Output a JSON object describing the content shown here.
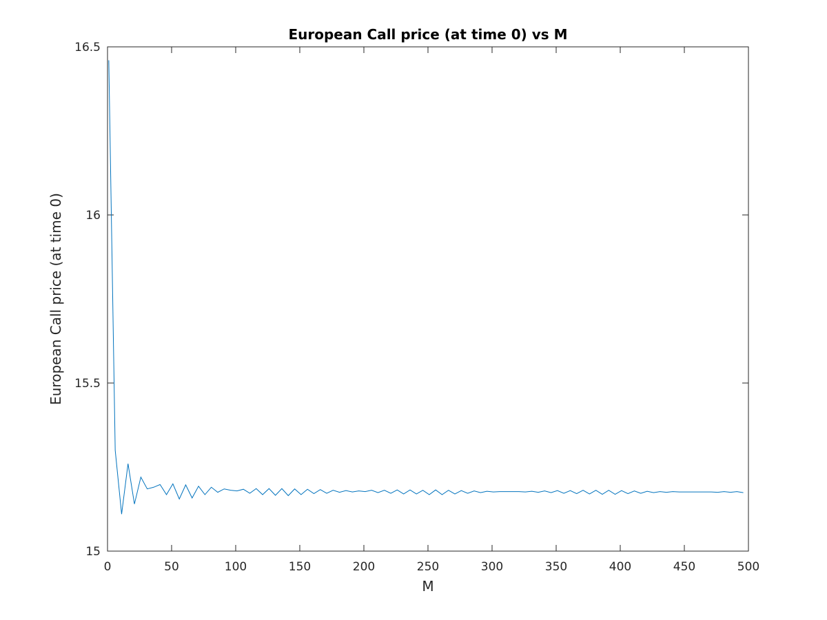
{
  "chart_data": {
    "type": "line",
    "title": "European Call price (at time 0) vs M",
    "xlabel": "M",
    "ylabel": "European Call price (at time 0)",
    "xlim": [
      0,
      500
    ],
    "ylim": [
      15,
      16.5
    ],
    "xticks": [
      0,
      50,
      100,
      150,
      200,
      250,
      300,
      350,
      400,
      450,
      500
    ],
    "yticks": [
      15,
      15.5,
      16,
      16.5
    ],
    "xtick_labels": [
      "0",
      "50",
      "100",
      "150",
      "200",
      "250",
      "300",
      "350",
      "400",
      "450",
      "500"
    ],
    "ytick_labels": [
      "15",
      "15.5",
      "16",
      "16.5"
    ],
    "grid": false,
    "line_color": "#0072BD",
    "series": [
      {
        "x": [
          1,
          6,
          11,
          16,
          21,
          26,
          31,
          36,
          41,
          46,
          51,
          56,
          61,
          66,
          71,
          76,
          81,
          86,
          91,
          96,
          101,
          106,
          111,
          116,
          121,
          126,
          131,
          136,
          141,
          146,
          151,
          156,
          161,
          166,
          171,
          176,
          181,
          186,
          191,
          196,
          201,
          206,
          211,
          216,
          221,
          226,
          231,
          236,
          241,
          246,
          251,
          256,
          261,
          266,
          271,
          276,
          281,
          286,
          291,
          296,
          301,
          306,
          311,
          316,
          321,
          326,
          331,
          336,
          341,
          346,
          351,
          356,
          361,
          366,
          371,
          376,
          381,
          386,
          391,
          396,
          401,
          406,
          411,
          416,
          421,
          426,
          431,
          436,
          441,
          446,
          451,
          456,
          461,
          466,
          471,
          476,
          481,
          486,
          491,
          496
        ],
        "y": [
          16.46,
          15.3,
          15.11,
          15.26,
          15.14,
          15.22,
          15.185,
          15.19,
          15.198,
          15.168,
          15.2,
          15.155,
          15.197,
          15.158,
          15.193,
          15.168,
          15.19,
          15.175,
          15.185,
          15.181,
          15.179,
          15.184,
          15.172,
          15.186,
          15.168,
          15.186,
          15.166,
          15.186,
          15.165,
          15.185,
          15.168,
          15.184,
          15.171,
          15.183,
          15.172,
          15.181,
          15.175,
          15.18,
          15.176,
          15.179,
          15.177,
          15.181,
          15.174,
          15.181,
          15.172,
          15.182,
          15.17,
          15.182,
          15.17,
          15.181,
          15.168,
          15.182,
          15.168,
          15.181,
          15.17,
          15.18,
          15.172,
          15.179,
          15.174,
          15.178,
          15.176,
          15.177,
          15.177,
          15.177,
          15.177,
          15.176,
          15.178,
          15.175,
          15.179,
          15.174,
          15.18,
          15.172,
          15.18,
          15.171,
          15.181,
          15.17,
          15.181,
          15.169,
          15.181,
          15.169,
          15.18,
          15.171,
          15.179,
          15.172,
          15.178,
          15.174,
          15.177,
          15.175,
          15.177,
          15.176,
          15.176,
          15.176,
          15.176,
          15.176,
          15.176,
          15.175,
          15.177,
          15.175,
          15.177,
          15.174
        ]
      }
    ]
  }
}
